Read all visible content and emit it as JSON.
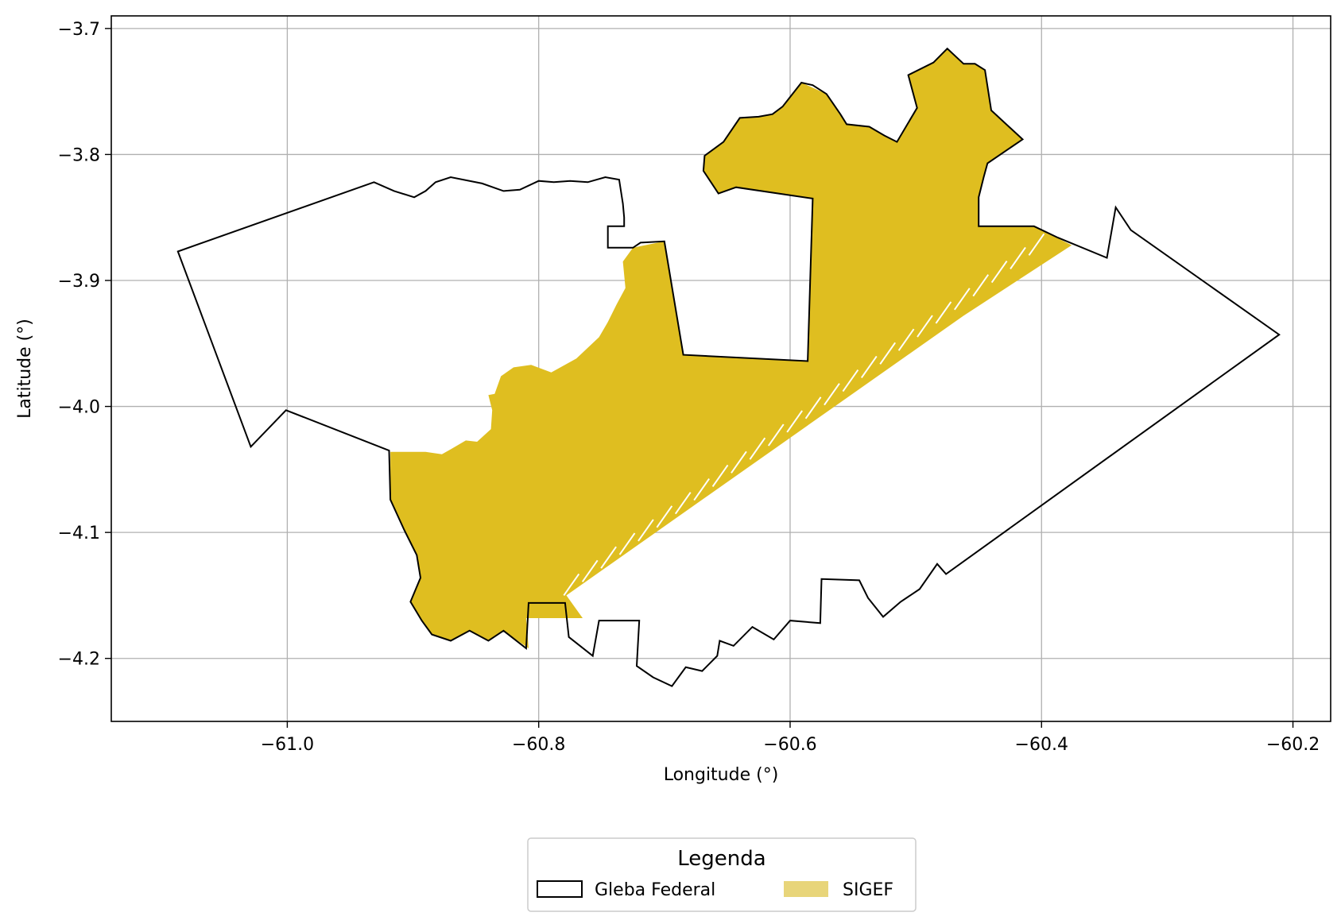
{
  "chart_data": {
    "type": "map",
    "xlabel": "Longitude (°)",
    "ylabel": "Latitude (°)",
    "xlim": [
      -61.14,
      -60.17
    ],
    "ylim": [
      -4.25,
      -3.69
    ],
    "xticks": [
      -61.0,
      -60.8,
      -60.6,
      -60.4,
      -60.2
    ],
    "xtick_labels": [
      "−61.0",
      "−60.8",
      "−60.6",
      "−60.4",
      "−60.2"
    ],
    "yticks": [
      -3.7,
      -3.8,
      -3.9,
      -4.0,
      -4.1,
      -4.2
    ],
    "ytick_labels": [
      "−3.7",
      "−3.8",
      "−3.9",
      "−4.0",
      "−4.1",
      "−4.2"
    ],
    "grid": true,
    "colors": {
      "gleba_edge": "#000000",
      "sigef_fill": "#dfbe20",
      "sigef_legend": "#e8d57a",
      "grid": "#b0b0b0"
    },
    "legend": {
      "title": "Legenda",
      "placement": "bottom-center, below axes",
      "entries": [
        {
          "label": "Gleba Federal",
          "style": "outline"
        },
        {
          "label": "SIGEF",
          "style": "fill"
        }
      ]
    },
    "layers": [
      {
        "name": "Gleba Federal",
        "type": "polygon-outline",
        "coordinates": [
          [
            -61.087,
            -3.877
          ],
          [
            -61.029,
            -4.032
          ],
          [
            -61.001,
            -4.003
          ],
          [
            -60.919,
            -4.035
          ],
          [
            -60.918,
            -4.074
          ],
          [
            -60.907,
            -4.098
          ],
          [
            -60.897,
            -4.118
          ],
          [
            -60.894,
            -4.136
          ],
          [
            -60.902,
            -4.155
          ],
          [
            -60.893,
            -4.17
          ],
          [
            -60.885,
            -4.181
          ],
          [
            -60.87,
            -4.186
          ],
          [
            -60.855,
            -4.178
          ],
          [
            -60.84,
            -4.186
          ],
          [
            -60.828,
            -4.178
          ],
          [
            -60.81,
            -4.192
          ],
          [
            -60.808,
            -4.156
          ],
          [
            -60.779,
            -4.156
          ],
          [
            -60.776,
            -4.183
          ],
          [
            -60.757,
            -4.198
          ],
          [
            -60.752,
            -4.17
          ],
          [
            -60.72,
            -4.17
          ],
          [
            -60.722,
            -4.206
          ],
          [
            -60.709,
            -4.215
          ],
          [
            -60.694,
            -4.222
          ],
          [
            -60.683,
            -4.207
          ],
          [
            -60.67,
            -4.21
          ],
          [
            -60.658,
            -4.198
          ],
          [
            -60.656,
            -4.186
          ],
          [
            -60.645,
            -4.19
          ],
          [
            -60.63,
            -4.175
          ],
          [
            -60.613,
            -4.185
          ],
          [
            -60.6,
            -4.17
          ],
          [
            -60.576,
            -4.172
          ],
          [
            -60.575,
            -4.137
          ],
          [
            -60.545,
            -4.138
          ],
          [
            -60.538,
            -4.152
          ],
          [
            -60.526,
            -4.167
          ],
          [
            -60.512,
            -4.155
          ],
          [
            -60.497,
            -4.145
          ],
          [
            -60.483,
            -4.125
          ],
          [
            -60.476,
            -4.133
          ],
          [
            -60.211,
            -3.943
          ],
          [
            -60.329,
            -3.86
          ],
          [
            -60.341,
            -3.842
          ],
          [
            -60.348,
            -3.882
          ],
          [
            -60.387,
            -3.866
          ],
          [
            -60.406,
            -3.857
          ],
          [
            -60.45,
            -3.857
          ],
          [
            -60.45,
            -3.834
          ],
          [
            -60.446,
            -3.818
          ],
          [
            -60.443,
            -3.807
          ],
          [
            -60.415,
            -3.788
          ],
          [
            -60.44,
            -3.765
          ],
          [
            -60.445,
            -3.733
          ],
          [
            -60.453,
            -3.728
          ],
          [
            -60.462,
            -3.728
          ],
          [
            -60.475,
            -3.716
          ],
          [
            -60.486,
            -3.727
          ],
          [
            -60.506,
            -3.737
          ],
          [
            -60.499,
            -3.763
          ],
          [
            -60.515,
            -3.79
          ],
          [
            -60.525,
            -3.785
          ],
          [
            -60.537,
            -3.778
          ],
          [
            -60.555,
            -3.776
          ],
          [
            -60.56,
            -3.768
          ],
          [
            -60.571,
            -3.752
          ],
          [
            -60.582,
            -3.745
          ],
          [
            -60.591,
            -3.743
          ],
          [
            -60.606,
            -3.762
          ],
          [
            -60.614,
            -3.768
          ],
          [
            -60.625,
            -3.77
          ],
          [
            -60.64,
            -3.771
          ],
          [
            -60.653,
            -3.79
          ],
          [
            -60.668,
            -3.801
          ],
          [
            -60.669,
            -3.813
          ],
          [
            -60.657,
            -3.831
          ],
          [
            -60.643,
            -3.826
          ],
          [
            -60.582,
            -3.835
          ],
          [
            -60.586,
            -3.964
          ],
          [
            -60.685,
            -3.959
          ],
          [
            -60.7,
            -3.869
          ],
          [
            -60.719,
            -3.87
          ],
          [
            -60.725,
            -3.874
          ],
          [
            -60.745,
            -3.874
          ],
          [
            -60.745,
            -3.857
          ],
          [
            -60.732,
            -3.857
          ],
          [
            -60.732,
            -3.85
          ],
          [
            -60.733,
            -3.839
          ],
          [
            -60.736,
            -3.82
          ],
          [
            -60.747,
            -3.818
          ],
          [
            -60.761,
            -3.822
          ],
          [
            -60.775,
            -3.821
          ],
          [
            -60.788,
            -3.822
          ],
          [
            -60.8,
            -3.821
          ],
          [
            -60.815,
            -3.828
          ],
          [
            -60.828,
            -3.829
          ],
          [
            -60.845,
            -3.823
          ],
          [
            -60.87,
            -3.818
          ],
          [
            -60.882,
            -3.822
          ],
          [
            -60.89,
            -3.829
          ],
          [
            -60.899,
            -3.834
          ],
          [
            -60.915,
            -3.829
          ],
          [
            -60.931,
            -3.822
          ],
          [
            -61.087,
            -3.877
          ]
        ]
      },
      {
        "name": "SIGEF",
        "type": "polygon-fill",
        "coordinates": [
          [
            -60.918,
            -4.036
          ],
          [
            -60.89,
            -4.036
          ],
          [
            -60.877,
            -4.038
          ],
          [
            -60.87,
            -4.034
          ],
          [
            -60.858,
            -4.027
          ],
          [
            -60.849,
            -4.028
          ],
          [
            -60.838,
            -4.018
          ],
          [
            -60.837,
            -4.003
          ],
          [
            -60.84,
            -3.991
          ],
          [
            -60.835,
            -3.99
          ],
          [
            -60.83,
            -3.976
          ],
          [
            -60.82,
            -3.969
          ],
          [
            -60.806,
            -3.967
          ],
          [
            -60.79,
            -3.973
          ],
          [
            -60.77,
            -3.962
          ],
          [
            -60.752,
            -3.945
          ],
          [
            -60.745,
            -3.933
          ],
          [
            -60.738,
            -3.919
          ],
          [
            -60.731,
            -3.906
          ],
          [
            -60.733,
            -3.885
          ],
          [
            -60.725,
            -3.874
          ],
          [
            -60.7,
            -3.869
          ],
          [
            -60.685,
            -3.959
          ],
          [
            -60.586,
            -3.964
          ],
          [
            -60.582,
            -3.835
          ],
          [
            -60.643,
            -3.826
          ],
          [
            -60.657,
            -3.831
          ],
          [
            -60.669,
            -3.813
          ],
          [
            -60.668,
            -3.801
          ],
          [
            -60.653,
            -3.79
          ],
          [
            -60.64,
            -3.771
          ],
          [
            -60.625,
            -3.77
          ],
          [
            -60.614,
            -3.768
          ],
          [
            -60.606,
            -3.762
          ],
          [
            -60.591,
            -3.743
          ],
          [
            -60.571,
            -3.752
          ],
          [
            -60.56,
            -3.768
          ],
          [
            -60.555,
            -3.776
          ],
          [
            -60.537,
            -3.778
          ],
          [
            -60.525,
            -3.785
          ],
          [
            -60.515,
            -3.79
          ],
          [
            -60.499,
            -3.763
          ],
          [
            -60.506,
            -3.737
          ],
          [
            -60.486,
            -3.727
          ],
          [
            -60.475,
            -3.716
          ],
          [
            -60.462,
            -3.728
          ],
          [
            -60.453,
            -3.728
          ],
          [
            -60.445,
            -3.733
          ],
          [
            -60.44,
            -3.765
          ],
          [
            -60.415,
            -3.788
          ],
          [
            -60.443,
            -3.807
          ],
          [
            -60.446,
            -3.818
          ],
          [
            -60.45,
            -3.834
          ],
          [
            -60.45,
            -3.857
          ],
          [
            -60.406,
            -3.857
          ],
          [
            -60.4,
            -3.86
          ],
          [
            -60.376,
            -3.872
          ],
          [
            -60.462,
            -3.928
          ],
          [
            -60.65,
            -4.06
          ],
          [
            -60.778,
            -4.15
          ],
          [
            -60.765,
            -4.168
          ],
          [
            -60.81,
            -4.168
          ],
          [
            -60.808,
            -4.192
          ],
          [
            -60.828,
            -4.178
          ],
          [
            -60.84,
            -4.186
          ],
          [
            -60.855,
            -4.178
          ],
          [
            -60.87,
            -4.186
          ],
          [
            -60.885,
            -4.181
          ],
          [
            -60.893,
            -4.17
          ],
          [
            -60.902,
            -4.155
          ],
          [
            -60.894,
            -4.136
          ],
          [
            -60.897,
            -4.118
          ],
          [
            -60.907,
            -4.098
          ],
          [
            -60.918,
            -4.074
          ]
        ]
      }
    ]
  }
}
